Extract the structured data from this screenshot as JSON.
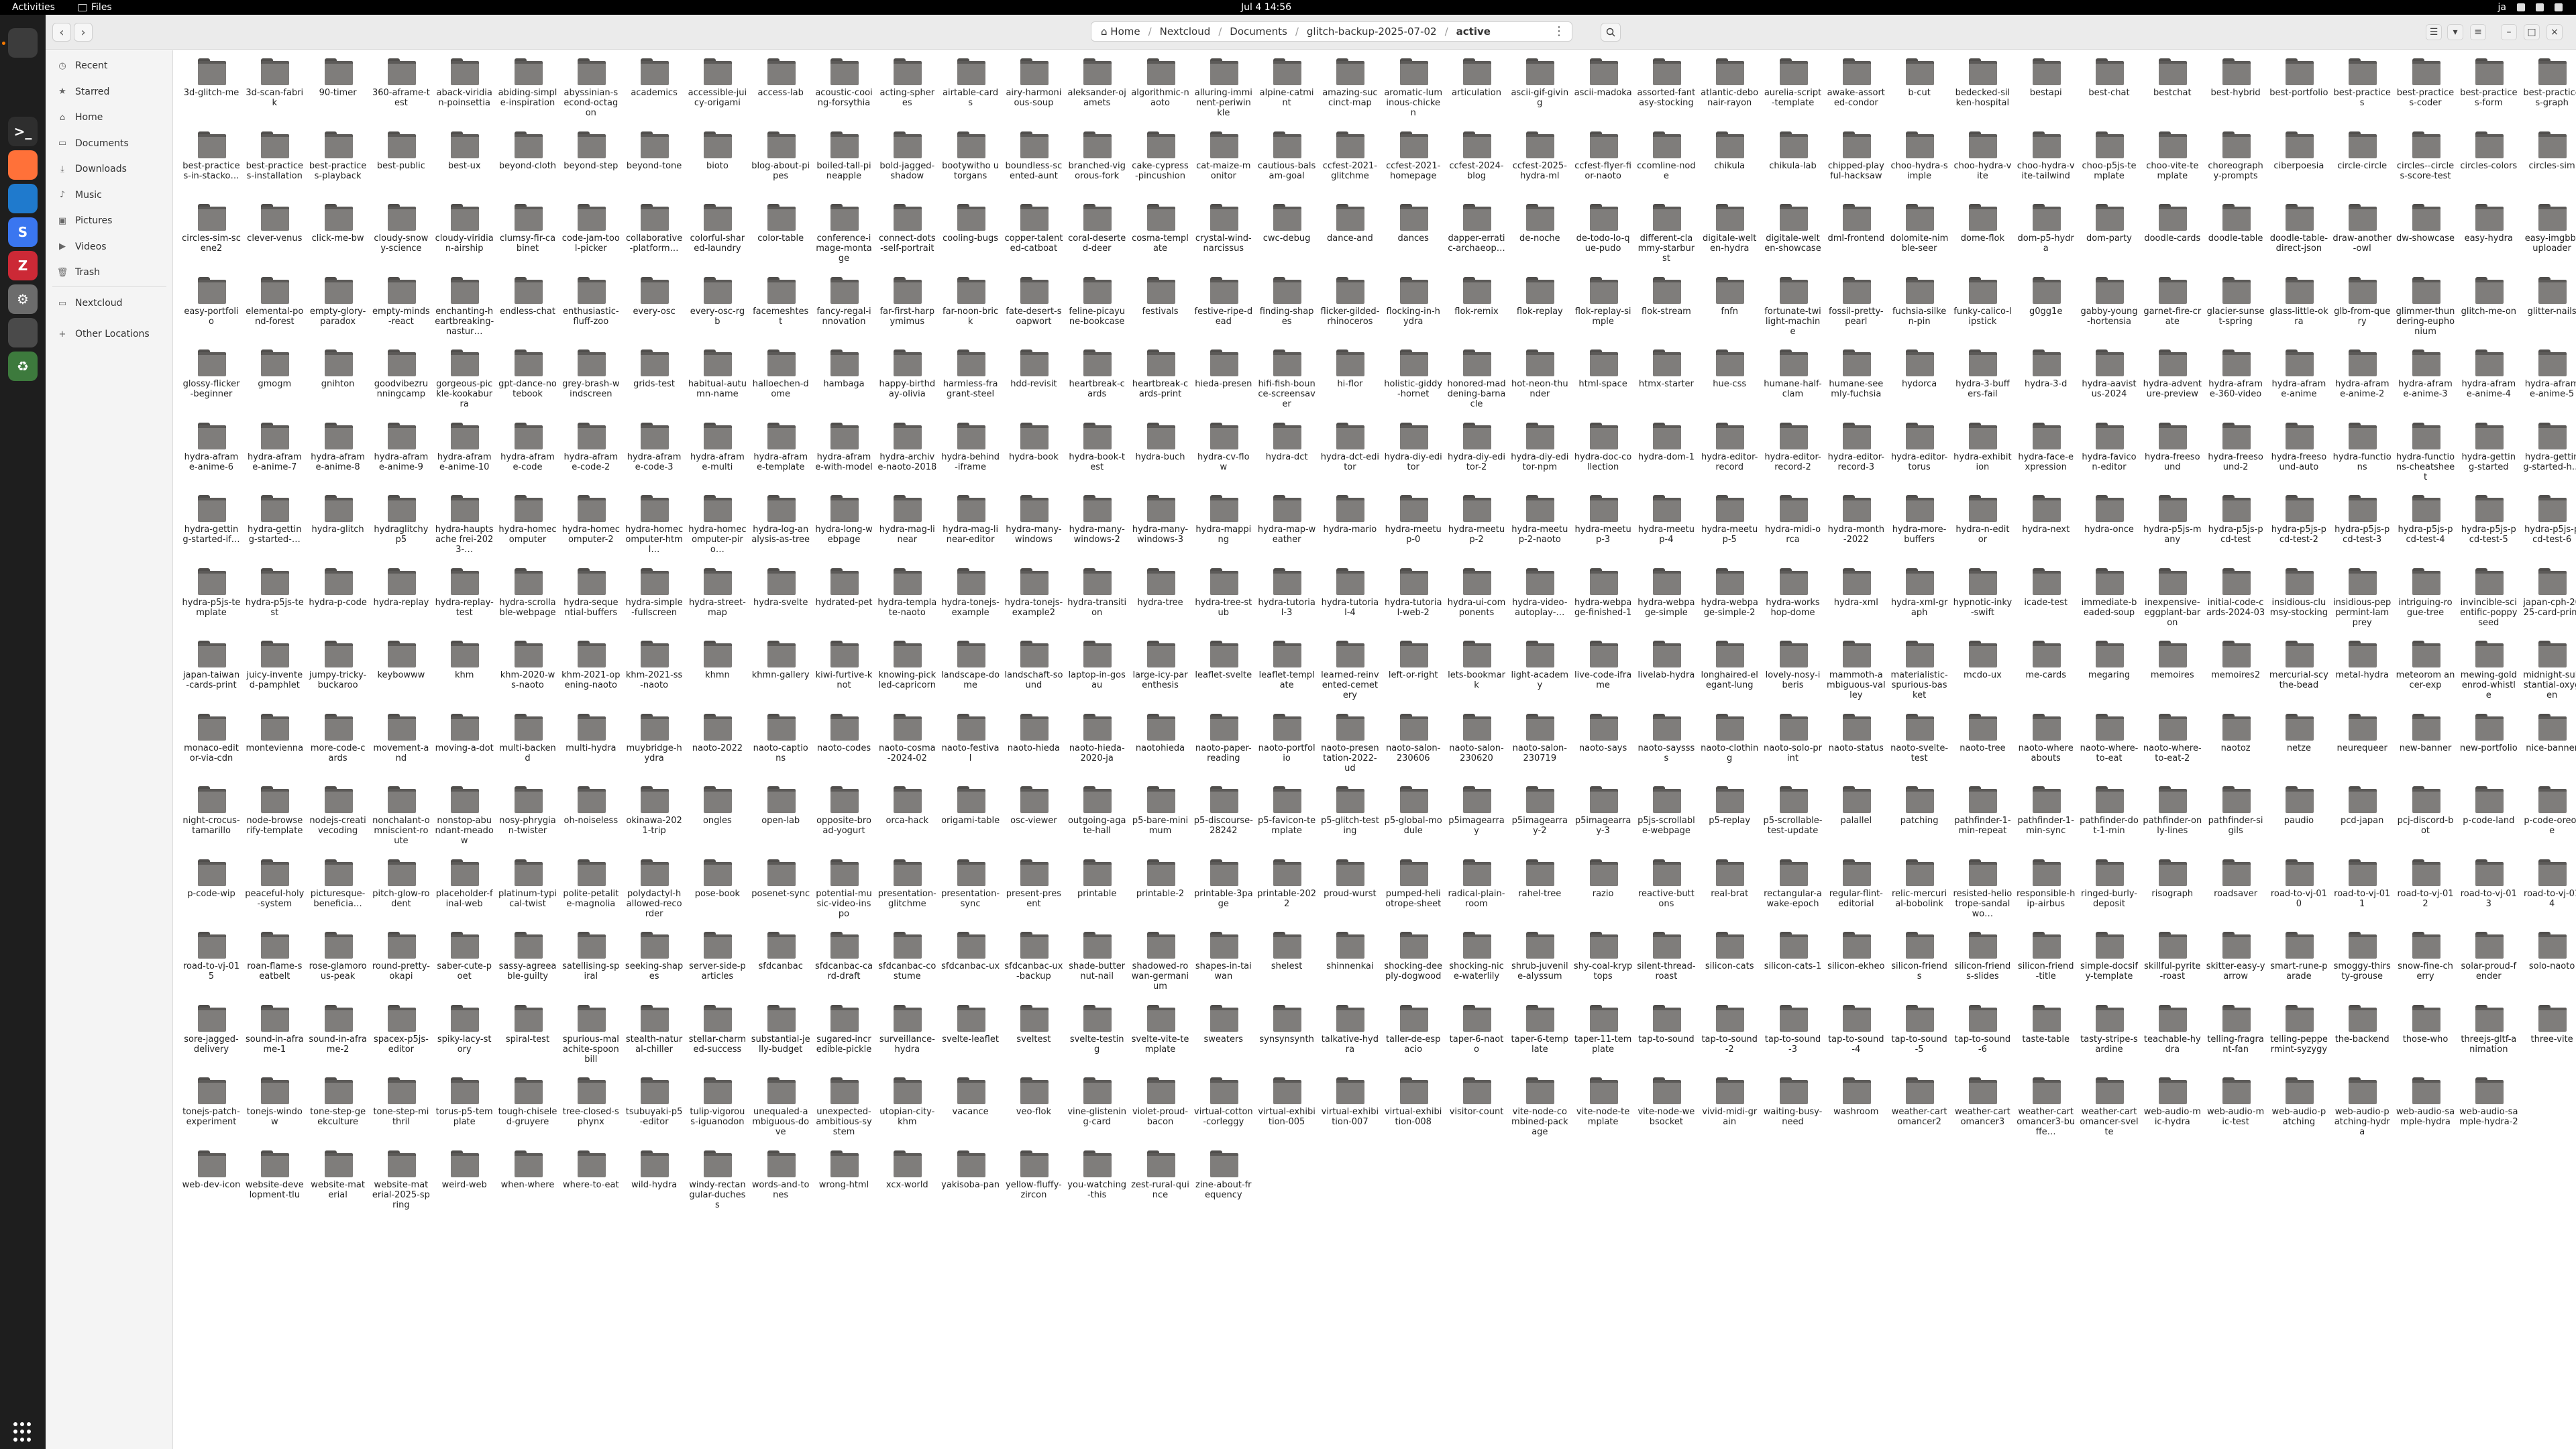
{
  "topbar": {
    "activities": "Activities",
    "app_name": "Files",
    "clock": "Jul 4  14:56",
    "keyboard_layout": "ja"
  },
  "dock": {
    "apps": [
      {
        "name": "files-app",
        "icon": "folder-icon",
        "color": "#3c3c3c",
        "glyph": ""
      },
      {
        "name": "terminal-app",
        "icon": "terminal-icon",
        "color": "#2e2e2e",
        "glyph": ">_"
      },
      {
        "name": "firefox-app",
        "icon": "firefox-icon",
        "color": "#ff7139",
        "glyph": ""
      },
      {
        "name": "vscode-app",
        "icon": "vscode-icon",
        "color": "#1f7acd",
        "glyph": ""
      },
      {
        "name": "signal-app",
        "icon": "signal-icon",
        "color": "#3a76f0",
        "glyph": "S"
      },
      {
        "name": "zotero-app",
        "icon": "zotero-icon",
        "color": "#cc2936",
        "glyph": "Z"
      },
      {
        "name": "settings-app",
        "icon": "gear-icon",
        "color": "#6c6c6c",
        "glyph": "⚙"
      },
      {
        "name": "disk-app",
        "icon": "disk-icon",
        "color": "#4a4a4a",
        "glyph": ""
      },
      {
        "name": "trash-app",
        "icon": "recycle-icon",
        "color": "#3d7a3d",
        "glyph": "♻"
      }
    ]
  },
  "header": {
    "path": [
      {
        "label": "Home",
        "icon": "home-icon"
      },
      {
        "label": "Nextcloud"
      },
      {
        "label": "Documents"
      },
      {
        "label": "glitch-backup-2025-07-02"
      },
      {
        "label": "active"
      }
    ],
    "right_buttons": [
      "list-view-icon",
      "view-options-icon",
      "menu-icon",
      "minimize-icon",
      "maximize-icon",
      "close-icon"
    ]
  },
  "sidebar": {
    "items": [
      {
        "label": "Recent",
        "icon": "clock-icon",
        "glyph": "◷"
      },
      {
        "label": "Starred",
        "icon": "star-icon",
        "glyph": "★"
      },
      {
        "label": "Home",
        "icon": "home-icon",
        "glyph": "⌂"
      },
      {
        "label": "Documents",
        "icon": "document-icon",
        "glyph": "▭"
      },
      {
        "label": "Downloads",
        "icon": "download-icon",
        "glyph": "⤓"
      },
      {
        "label": "Music",
        "icon": "music-icon",
        "glyph": "♪"
      },
      {
        "label": "Pictures",
        "icon": "picture-icon",
        "glyph": "▣"
      },
      {
        "label": "Videos",
        "icon": "video-icon",
        "glyph": "▶"
      },
      {
        "label": "Trash",
        "icon": "trash-icon",
        "glyph": "🗑"
      }
    ],
    "locations": [
      {
        "label": "Nextcloud",
        "icon": "folder-icon",
        "glyph": "▭"
      },
      {
        "label": "Other Locations",
        "icon": "plus-icon",
        "glyph": "+"
      }
    ]
  },
  "folders": [
    [
      "3d-glitch-me",
      "3d-scan-fabrik",
      "90-timer",
      "360-aframe-test",
      "aback-viridian-poinsettia",
      "abiding-simple-inspiration",
      "abyssinian-second-octagon",
      "academics",
      "accessible-juicy-origami",
      "access-lab",
      "acoustic-cooing-forsythia",
      "acting-spheres",
      "airtable-cards",
      "airy-harmonious-soup",
      "aleksander-ojamets",
      "algorithmic-naoto",
      "alluring-imminent-periwinkle",
      "alpine-catmint",
      "amazing-succinct-map",
      "aromatic-luminous-chicken",
      "articulation",
      "ascii-gif-giving",
      "ascii-madoka",
      "assorted-fantasy-stocking",
      "atlantic-debonair-rayon",
      "aurelia-script-template",
      "awake-assorted-condor",
      "b-cut",
      "bedecked-silken-hospital",
      "bestapi",
      "best-chat",
      "bestchat",
      "best-hybrid",
      "best-portfolio",
      "best-practices",
      "best-practices-coder",
      "best-practices-form",
      "best-practices-graph"
    ],
    [
      "best-practices-in-stacko…",
      "best-practices-installation",
      "best-practices-playback",
      "best-public",
      "best-ux",
      "beyond-cloth",
      "beyond-step",
      "beyond-tone",
      "bioto",
      "blog-about-pipes",
      "boiled-tall-pineapple",
      "bold-jagged-shadow",
      "bootywitho utorgans",
      "boundless-scented-aunt",
      "branched-vigorous-fork",
      "cake-cypress-pincushion",
      "cat-maize-monitor",
      "cautious-balsam-goal",
      "ccfest-2021-glitchme",
      "ccfest-2021-homepage",
      "ccfest-2024-blog",
      "ccfest-2025-hydra-ml",
      "ccfest-flyer-fior-naoto",
      "ccomline-node",
      "chikula",
      "chikula-lab",
      "chipped-playful-hacksaw",
      "choo-hydra-simple",
      "choo-hydra-vite",
      "choo-hydra-vite-tailwind",
      "choo-p5js-template",
      "choo-vite-template",
      "choreography-prompts",
      "ciberpoesia",
      "circle-circle",
      "circles--circles-score-test",
      "circles-colors",
      "circles-sim"
    ],
    [
      "circles-sim-scene2",
      "clever-venus",
      "click-me-bw",
      "cloudy-snowy-science",
      "cloudy-viridian-airship",
      "clumsy-fir-cabinet",
      "code-jam-tool-picker",
      "collaborative-platform…",
      "colorful-shared-laundry",
      "color-table",
      "conference-image-montage",
      "connect-dots-self-portrait",
      "cooling-bugs",
      "copper-talented-catboat",
      "coral-deserted-deer",
      "cosma-template",
      "crystal-wind-narcissus",
      "cwc-debug",
      "dance-and",
      "dances",
      "dapper-erratic-archaeop…",
      "de-noche",
      "de-todo-lo-que-pudo",
      "different-clammy-starburst",
      "digitale-welten-hydra",
      "digitale-welten-showcase",
      "dml-frontend",
      "dolomite-nimble-seer",
      "dome-flok",
      "dom-p5-hydra",
      "dom-party",
      "doodle-cards",
      "doodle-table",
      "doodle-table-direct-json",
      "draw-another-owl",
      "dw-showcase",
      "easy-hydra",
      "easy-imgbb-uploader"
    ],
    [
      "easy-portfolio",
      "elemental-pond-forest",
      "empty-glory-paradox",
      "empty-minds-react",
      "enchanting-heartbreaking-nastur…",
      "endless-chat",
      "enthusiastic-fluff-zoo",
      "every-osc",
      "every-osc-rgb",
      "facemeshtest",
      "fancy-regal-innovation",
      "far-first-harpymimus",
      "far-noon-brick",
      "fate-desert-soapwort",
      "feline-picayune-bookcase",
      "festivals",
      "festive-ripe-dead",
      "finding-shapes",
      "flicker-gilded-rhinoceros",
      "flocking-in-hydra",
      "flok-remix",
      "flok-replay",
      "flok-replay-simple",
      "flok-stream",
      "fnfn",
      "fortunate-twilight-machine",
      "fossil-pretty-pearl",
      "fuchsia-silken-pin",
      "funky-calico-lipstick",
      "g0gg1e",
      "gabby-young-hortensia",
      "garnet-fire-crate",
      "glacier-sunset-spring",
      "glass-little-okra",
      "glb-from-query",
      "glimmer-thundering-euphonium",
      "glitch-me-on",
      "glitter-nails"
    ],
    [
      "glossy-flicker-beginner",
      "gmogm",
      "gnihton",
      "goodvibezrunningcamp",
      "gorgeous-pickle-kookaburra",
      "gpt-dance-notebook",
      "grey-brash-windscreen",
      "grids-test",
      "habitual-autumn-name",
      "halloechen-dome",
      "hambaga",
      "happy-birthday-olivia",
      "harmless-fragrant-steel",
      "hdd-revisit",
      "heartbreak-cards",
      "heartbreak-cards-print",
      "hieda-presen",
      "hifi-fish-bounce-screensaver",
      "hi-flor",
      "holistic-giddy-hornet",
      "honored-maddening-barnacle",
      "hot-neon-thunder",
      "html-space",
      "htmx-starter",
      "hue-css",
      "humane-half-clam",
      "humane-seemly-fuchsia",
      "hydorca",
      "hydra-3-buffers-fail",
      "hydra-3-d",
      "hydra-aavistus-2024",
      "hydra-adventure-preview",
      "hydra-aframe-360-video",
      "hydra-aframe-anime",
      "hydra-aframe-anime-2",
      "hydra-aframe-anime-3",
      "hydra-aframe-anime-4",
      "hydra-aframe-anime-5"
    ],
    [
      "hydra-aframe-anime-6",
      "hydra-aframe-anime-7",
      "hydra-aframe-anime-8",
      "hydra-aframe-anime-9",
      "hydra-aframe-anime-10",
      "hydra-aframe-code",
      "hydra-aframe-code-2",
      "hydra-aframe-code-3",
      "hydra-aframe-multi",
      "hydra-aframe-template",
      "hydra-aframe-with-model",
      "hydra-archive-naoto-2018",
      "hydra-behind-iframe",
      "hydra-book",
      "hydra-book-test",
      "hydra-buch",
      "hydra-cv-flow",
      "hydra-dct",
      "hydra-dct-editor",
      "hydra-diy-editor",
      "hydra-diy-editor-2",
      "hydra-diy-editor-npm",
      "hydra-doc-collection",
      "hydra-dom-1",
      "hydra-editor-record",
      "hydra-editor-record-2",
      "hydra-editor-record-3",
      "hydra-editor-torus",
      "hydra-exhibition",
      "hydra-face-expression",
      "hydra-favicon-editor",
      "hydra-freesound",
      "hydra-freesound-2",
      "hydra-freesound-auto",
      "hydra-functions",
      "hydra-functions-cheatsheet",
      "hydra-getting-started",
      "hydra-getting-started-h…"
    ],
    [
      "hydra-getting-started-if…",
      "hydra-getting-started-…",
      "hydra-glitch",
      "hydraglitchyp5",
      "hydra-hauptsache frei-2023-…",
      "hydra-homecomputer",
      "hydra-homecomputer-2",
      "hydra-homecomputer-html…",
      "hydra-homecomputer-piro…",
      "hydra-log-analysis-as-tree",
      "hydra-long-webpage",
      "hydra-mag-linear",
      "hydra-mag-linear-editor",
      "hydra-many-windows",
      "hydra-many-windows-2",
      "hydra-many-windows-3",
      "hydra-mapping",
      "hydra-map-weather",
      "hydra-mario",
      "hydra-meetup-0",
      "hydra-meetup-2",
      "hydra-meetup-2-naoto",
      "hydra-meetup-3",
      "hydra-meetup-4",
      "hydra-meetup-5",
      "hydra-midi-orca",
      "hydra-month-2022",
      "hydra-more-buffers",
      "hydra-n-editor",
      "hydra-next",
      "hydra-once",
      "hydra-p5js-many",
      "hydra-p5js-pcd-test",
      "hydra-p5js-pcd-test-2",
      "hydra-p5js-pcd-test-3",
      "hydra-p5js-pcd-test-4",
      "hydra-p5js-pcd-test-5",
      "hydra-p5js-pcd-test-6"
    ],
    [
      "hydra-p5js-template",
      "hydra-p5js-test",
      "hydra-p-code",
      "hydra-replay",
      "hydra-replay-test",
      "hydra-scrollable-webpage",
      "hydra-sequential-buffers",
      "hydra-simple-fullscreen",
      "hydra-street-map",
      "hydra-svelte",
      "hydrated-pet",
      "hydra-template-naoto",
      "hydra-tonejs-example",
      "hydra-tonejs-example2",
      "hydra-transition",
      "hydra-tree",
      "hydra-tree-stub",
      "hydra-tutorial-3",
      "hydra-tutorial-4",
      "hydra-tutorial-web-2",
      "hydra-ui-components",
      "hydra-video-autoplay-…",
      "hydra-webpage-finished-1",
      "hydra-webpage-simple",
      "hydra-webpage-simple-2",
      "hydra-workshop-dome",
      "hydra-xml",
      "hydra-xml-graph",
      "hypnotic-inky-swift",
      "icade-test",
      "immediate-beaded-soup",
      "inexpensive-eggplant-baron",
      "initial-code-cards-2024-03",
      "insidious-clumsy-stocking",
      "insidious-peppermint-lamprey",
      "intriguing-rogue-tree",
      "invincible-scientific-poppyseed",
      "japan-cph-2025-card-print"
    ],
    [
      "japan-taiwan-cards-print",
      "juicy-invented-pamphlet",
      "jumpy-tricky-buckaroo",
      "keybowww",
      "khm",
      "khm-2020-ws-naoto",
      "khm-2021-opening-naoto",
      "khm-2021-ss-naoto",
      "khmn",
      "khmn-gallery",
      "kiwi-furtive-knot",
      "knowing-pickled-capricorn",
      "landscape-dome",
      "landschaft-sound",
      "laptop-in-gosau",
      "large-icy-parenthesis",
      "leaflet-svelte",
      "leaflet-template",
      "learned-reinvented-cemetery",
      "left-or-right",
      "lets-bookmark",
      "light-academy",
      "live-code-iframe",
      "livelab-hydra",
      "longhaired-elegant-lung",
      "lovely-nosy-iberis",
      "mammoth-ambiguous-valley",
      "materialistic-spurious-basket",
      "mcdo-ux",
      "me-cards",
      "megaring",
      "memoires",
      "memoires2",
      "mercurial-scythe-bead",
      "metal-hydra",
      "meteorom ancer-exp",
      "mewing-goldenrod-whistle",
      "midnight-substantial-oxygen"
    ],
    [
      "monaco-editor-via-cdn",
      "montevienna",
      "more-code-cards",
      "movement-and",
      "moving-a-dot",
      "multi-backend",
      "multi-hydra",
      "muybridge-hydra",
      "naoto-2022",
      "naoto-captions",
      "naoto-codes",
      "naoto-cosma-2024-02",
      "naoto-festival",
      "naoto-hieda",
      "naoto-hieda-2020-ja",
      "naotohieda",
      "naoto-paper-reading",
      "naoto-portfolio",
      "naoto-presentation-2022-ud",
      "naoto-salon-230606",
      "naoto-salon-230620",
      "naoto-salon-230719",
      "naoto-says",
      "naoto-sayssss",
      "naoto-clothing",
      "naoto-solo-print",
      "naoto-status",
      "naoto-svelte-test",
      "naoto-tree",
      "naoto-whereabouts",
      "naoto-where-to-eat",
      "naoto-where-to-eat-2",
      "naotoz",
      "netze",
      "neurequeer",
      "new-banner",
      "new-portfolio",
      "nice-banner"
    ],
    [
      "night-crocus-tamarillo",
      "node-browserify-template",
      "nodejs-creativecoding",
      "nonchalant-omniscient-route",
      "nonstop-abundant-meadow",
      "nosy-phrygian-twister",
      "oh-noiseless",
      "okinawa-2021-trip",
      "ongles",
      "open-lab",
      "opposite-broad-yogurt",
      "orca-hack",
      "origami-table",
      "osc-viewer",
      "outgoing-agate-hall",
      "p5-bare-minimum",
      "p5-discourse-28242",
      "p5-favicon-template",
      "p5-glitch-testing",
      "p5-global-module",
      "p5imagearray",
      "p5imagearray-2",
      "p5imagearray-3",
      "p5js-scrollable-webpage",
      "p5-replay",
      "p5-scrollable-test-update",
      "palallel",
      "patching",
      "pathfinder-1-min-repeat",
      "pathfinder-1-min-sync",
      "pathfinder-dot-1-min",
      "pathfinder-only-lines",
      "pathfinder-sigils",
      "paudio",
      "pcd-japan",
      "pcj-discord-bot",
      "p-code-land",
      "p-code-oreore"
    ],
    [
      "p-code-wip",
      "peaceful-holy-system",
      "picturesque-beneficia…",
      "pitch-glow-rodent",
      "placeholder-final-web",
      "platinum-typical-twist",
      "polite-petalite-magnolia",
      "polydactyl-hallowed-recorder",
      "pose-book",
      "posenet-sync",
      "potential-music-video-inspo",
      "presentation-glitchme",
      "presentation-sync",
      "present-present",
      "printable",
      "printable-2",
      "printable-3page",
      "printable-2022",
      "proud-wurst",
      "pumped-heliotrope-sheet",
      "radical-plain-room",
      "rahel-tree",
      "razio",
      "reactive-buttons",
      "real-brat",
      "rectangular-awake-epoch",
      "regular-flint-editorial",
      "relic-mercurial-bobolink",
      "resisted-heliotrope-sandalwo…",
      "responsible-hip-airbus",
      "ringed-burly-deposit",
      "risograph",
      "roadsaver",
      "road-to-vj-010",
      "road-to-vj-011",
      "road-to-vj-012",
      "road-to-vj-013",
      "road-to-vj-014"
    ],
    [
      "road-to-vj-015",
      "roan-flame-seatbelt",
      "rose-glamorous-peak",
      "round-pretty-okapi",
      "saber-cute-poet",
      "sassy-agreeable-guilty",
      "satellising-spiral",
      "seeking-shapes",
      "server-side-particles",
      "sfdcanbac",
      "sfdcanbac-card-draft",
      "sfdcanbac-costume",
      "sfdcanbac-ux",
      "sfdcanbac-ux-backup",
      "shade-butternut-nail",
      "shadowed-rowan-germanium",
      "shapes-in-taiwan",
      "shelest",
      "shinnenkai",
      "shocking-deeply-dogwood",
      "shocking-nice-waterlily",
      "shrub-juvenile-alyssum",
      "shy-coal-kryptops",
      "silent-thread-roast",
      "silicon-cats",
      "silicon-cats-1",
      "silicon-ekheo",
      "silicon-friends",
      "silicon-friends-slides",
      "silicon-friend-title",
      "simple-docsify-template",
      "skillful-pyrite-roast",
      "skitter-easy-yarrow",
      "smart-rune-parade",
      "smoggy-thirsty-grouse",
      "snow-fine-cherry",
      "solar-proud-fender",
      "solo-naoto"
    ],
    [
      "sore-jagged-delivery",
      "sound-in-aframe-1",
      "sound-in-aframe-2",
      "spacex-p5js-editor",
      "spiky-lacy-story",
      "spiral-test",
      "spurious-malachite-spoonbill",
      "stealth-natural-chiller",
      "stellar-charmed-success",
      "substantial-jelly-budget",
      "sugared-incredible-pickle",
      "surveillance-hydra",
      "svelte-leaflet",
      "sveltest",
      "svelte-testing",
      "svelte-vite-template",
      "sweaters",
      "synsynsynth",
      "talkative-hydra",
      "taller-de-espacio",
      "taper-6-naoto",
      "taper-6-template",
      "taper-11-template",
      "tap-to-sound",
      "tap-to-sound-2",
      "tap-to-sound-3",
      "tap-to-sound-4",
      "tap-to-sound-5",
      "tap-to-sound-6",
      "taste-table",
      "tasty-stripe-sardine",
      "teachable-hydra",
      "telling-fragrant-fan",
      "telling-peppermint-syzygy",
      "the-backend",
      "those-who",
      "threejs-gltf-animation",
      "three-vite"
    ],
    [
      "tonejs-patch-experiment",
      "tonejs-window",
      "tone-step-geekculture",
      "tone-step-mithril",
      "torus-p5-template",
      "tough-chiseled-gruyere",
      "tree-closed-sphynx",
      "tsubuyaki-p5-editor",
      "tulip-vigorous-iguanodon",
      "unequaled-ambiguous-dove",
      "unexpected-ambitious-system",
      "utopian-city-khm",
      "vacance",
      "veo-flok",
      "vine-glistening-card",
      "violet-proud-bacon",
      "virtual-cotton-corleggy",
      "virtual-exhibition-005",
      "virtual-exhibition-007",
      "virtual-exhibition-008",
      "visitor-count",
      "vite-node-combined-package",
      "vite-node-template",
      "vite-node-websocket",
      "vivid-midi-grain",
      "waiting-busy-need",
      "washroom",
      "weather-cartomancer2",
      "weather-cartomancer3",
      "weather-cartomancer3-buffe…",
      "weather-cartomancer-svelte",
      "web-audio-mic-hydra",
      "web-audio-mic-test",
      "web-audio-patching",
      "web-audio-patching-hydra",
      "web-audio-sample-hydra",
      "web-audio-sample-hydra-2"
    ],
    [
      "web-dev-icon",
      "website-development-tlu",
      "website-material",
      "website-material-2025-spring",
      "weird-web",
      "when-where",
      "where-to-eat",
      "wild-hydra",
      "windy-rectangular-duchess",
      "words-and-tones",
      "wrong-html",
      "xcx-world",
      "yakisoba-pan",
      "yellow-fluffy-zircon",
      "you-watching-this",
      "zest-rural-quince",
      "zine-about-frequency"
    ]
  ]
}
